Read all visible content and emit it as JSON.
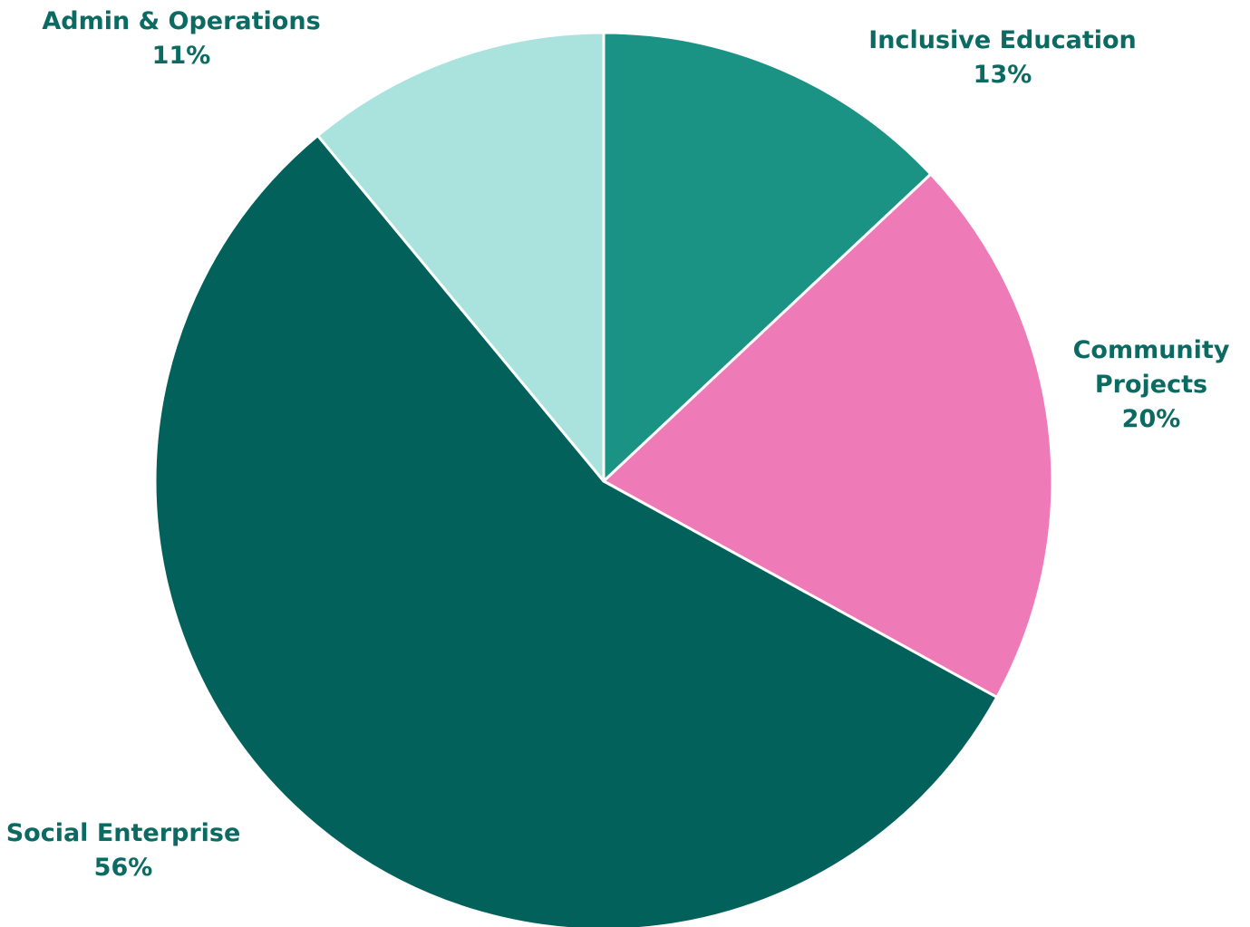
{
  "chart_data": {
    "type": "pie",
    "start_angle_deg": 0,
    "direction": "clockwise",
    "slices": [
      {
        "label": "Inclusive Education",
        "value": 13,
        "display": "13%",
        "color": "#1a9385"
      },
      {
        "label": "Community Projects",
        "value": 20,
        "display": "20%",
        "color": "#ef7ab8"
      },
      {
        "label": "Social Enterprise",
        "value": 56,
        "display": "56%",
        "color": "#02615a"
      },
      {
        "label": "Admin & Operations",
        "value": 11,
        "display": "11%",
        "color": "#aae3de"
      }
    ],
    "label_color": "#0b6b63",
    "slice_border_color": "#ffffff"
  }
}
